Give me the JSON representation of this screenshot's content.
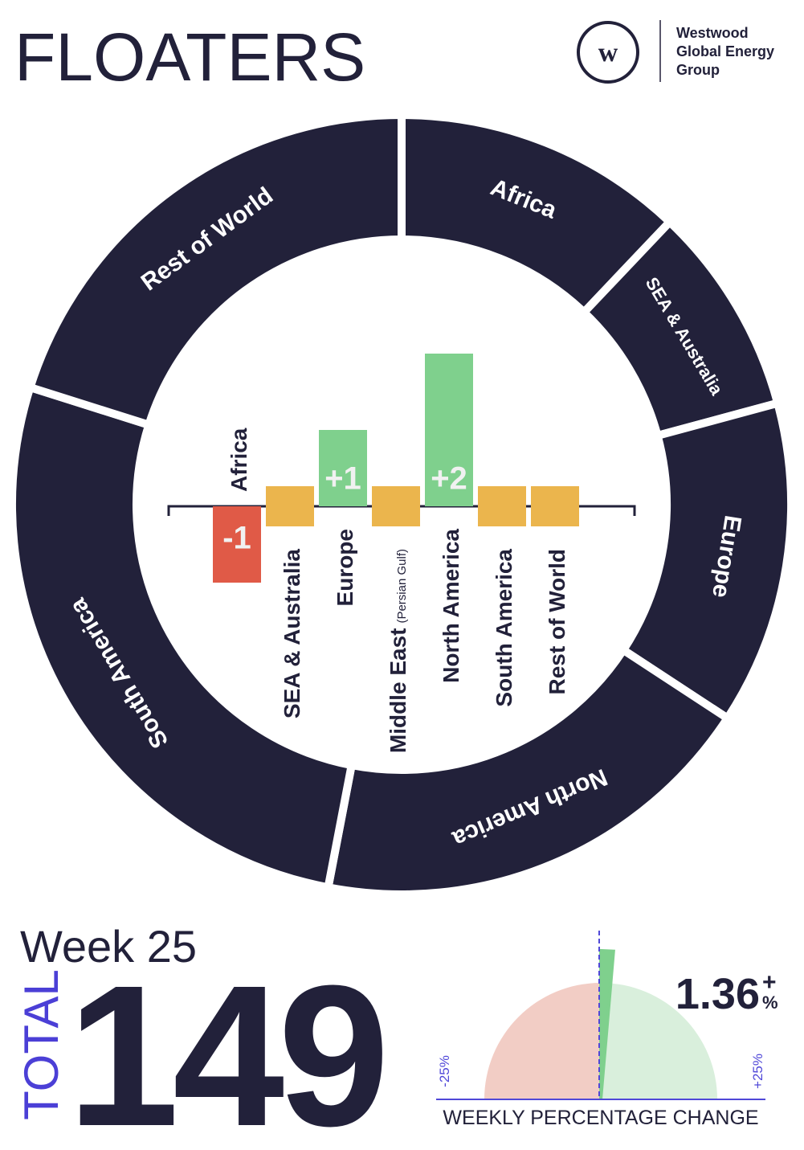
{
  "title": "FLOATERS",
  "logo": {
    "lines": [
      "Westwood",
      "Global Energy",
      "Group"
    ]
  },
  "chart_data": [
    {
      "type": "donut",
      "categories": [
        "Africa",
        "SEA & Australia",
        "Europe",
        "North America",
        "South America",
        "Rest of World"
      ],
      "values": [
        18,
        13,
        20,
        28,
        40,
        30
      ],
      "color": "#22213a"
    },
    {
      "type": "bar",
      "categories": [
        "Africa",
        "SEA & Australia",
        "Europe",
        "Middle East",
        "North America",
        "South America",
        "Rest of World"
      ],
      "category_notes": [
        null,
        null,
        null,
        "(Persian Gulf)",
        null,
        null,
        null
      ],
      "values": [
        -1,
        0,
        1,
        0,
        2,
        0,
        0
      ],
      "value_labels": [
        "-1",
        null,
        "+1",
        null,
        "+2",
        null,
        null
      ],
      "colors": {
        "negative": "#e05a47",
        "zero": "#ebb54d",
        "positive": "#7fd08d"
      },
      "ylim": [
        -1,
        2
      ]
    },
    {
      "type": "gauge",
      "value": 1.36,
      "suffix": "+",
      "unit": "%",
      "xlim": [
        -25,
        25
      ],
      "xticks": [
        {
          "value": -25,
          "label": "-25%"
        },
        {
          "value": 25,
          "label": "+25%"
        }
      ],
      "xlabel": "WEEKLY PERCENTAGE CHANGE",
      "colors": {
        "negative": "#f2cdc5",
        "positive": "#d9efdc",
        "needle": "#7fd08d",
        "axis": "#5048d8"
      }
    }
  ],
  "week": "Week 25",
  "total_label": "TOTAL",
  "total": 149
}
